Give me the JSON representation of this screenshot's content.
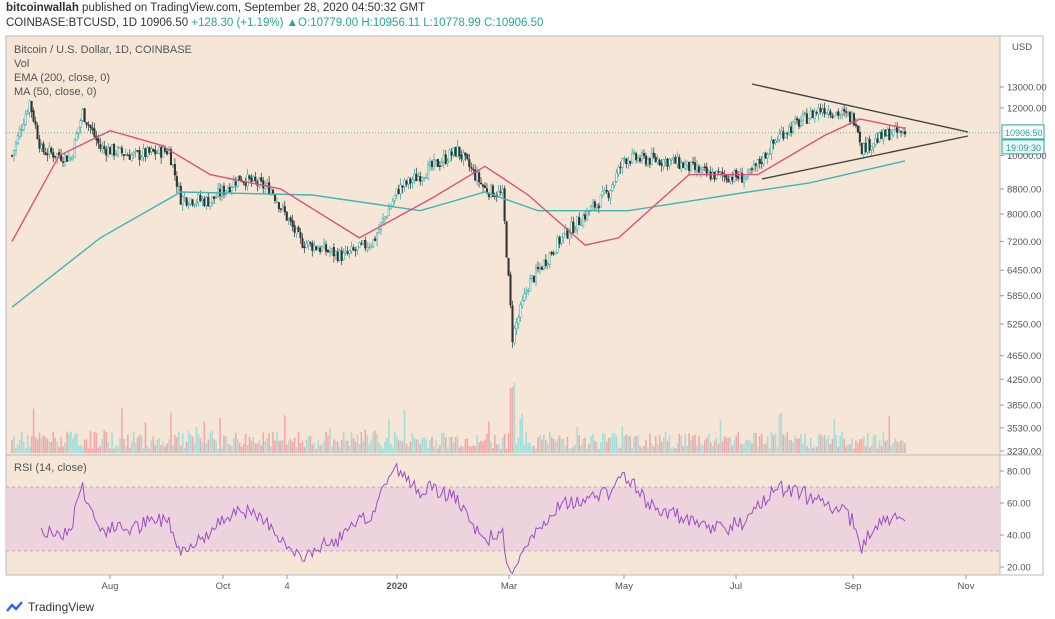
{
  "header": {
    "author": "bitcoinwallah",
    "published": "published on TradingView.com, September 28, 2020 04:50:32 GMT",
    "symbol": "COINBASE:BTCUSD, 1D",
    "last": "10906.50",
    "change": "+128.30 (+1.19%)",
    "o_label": "O:",
    "o": "10779.00",
    "h_label": "H:",
    "h": "10956.11",
    "l_label": "L:",
    "l": "10778.99",
    "c_label": "C:",
    "c": "10906.50"
  },
  "legend": {
    "title": "Bitcoin / U.S. Dollar, 1D, COINBASE",
    "vol": "Vol",
    "ema": "EMA (200, close, 0)",
    "ma": "MA (50, close, 0)",
    "rsi": "RSI (14, close)"
  },
  "footer": {
    "brand": "TradingView"
  },
  "colors": {
    "background": "#f5e6d8",
    "up": "#26a69a",
    "down": "#333333",
    "ema": "#3db8b0",
    "ma": "#e0507a",
    "rsi": "#9c4fc4",
    "rsi_band": "#ecd3dd",
    "trendline": "#444444"
  },
  "chart_data": [
    {
      "type": "line",
      "panel": "price",
      "scale": "log",
      "currency": "USD",
      "price_labels": [
        "USD",
        "13000.00",
        "12000.00",
        "10000.00",
        "8800.00",
        "8000.00",
        "7200.00",
        "6450.00",
        "5850.00",
        "5250.00",
        "4650.00",
        "4250.00",
        "3850.00",
        "3530.00",
        "3230.00"
      ],
      "x_ticks": [
        "Aug",
        "Oct",
        "4",
        "2020",
        "Mar",
        "May",
        "Jul",
        "Sep",
        "Nov"
      ],
      "current_price_label": "10906.50",
      "countdown_label": "19:09:30",
      "close_series_approx": [
        [
          "2019-07-01",
          10000
        ],
        [
          "2019-07-10",
          12300
        ],
        [
          "2019-07-16",
          10200
        ],
        [
          "2019-07-31",
          9900
        ],
        [
          "2019-08-06",
          11800
        ],
        [
          "2019-08-15",
          10300
        ],
        [
          "2019-09-01",
          10000
        ],
        [
          "2019-09-19",
          10200
        ],
        [
          "2019-09-25",
          8500
        ],
        [
          "2019-10-10",
          8400
        ],
        [
          "2019-10-25",
          9200
        ],
        [
          "2019-11-10",
          8800
        ],
        [
          "2019-11-25",
          7200
        ],
        [
          "2019-12-17",
          6800
        ],
        [
          "2020-01-01",
          7200
        ],
        [
          "2020-01-14",
          8800
        ],
        [
          "2020-02-13",
          10200
        ],
        [
          "2020-02-27",
          8800
        ],
        [
          "2020-03-07",
          8600
        ],
        [
          "2020-03-12",
          5000
        ],
        [
          "2020-03-20",
          6100
        ],
        [
          "2020-04-06",
          7300
        ],
        [
          "2020-04-30",
          8700
        ],
        [
          "2020-05-08",
          9900
        ],
        [
          "2020-06-01",
          9800
        ],
        [
          "2020-06-20",
          9300
        ],
        [
          "2020-07-10",
          9200
        ],
        [
          "2020-07-27",
          10900
        ],
        [
          "2020-08-17",
          12000
        ],
        [
          "2020-09-03",
          11500
        ],
        [
          "2020-09-06",
          10300
        ],
        [
          "2020-09-20",
          10900
        ],
        [
          "2020-09-28",
          10906.5
        ]
      ],
      "ema_200_approx": [
        [
          "2019-07-01",
          5600
        ],
        [
          "2019-08-15",
          7300
        ],
        [
          "2019-09-25",
          8700
        ],
        [
          "2019-12-01",
          8600
        ],
        [
          "2020-01-25",
          8100
        ],
        [
          "2020-02-27",
          8700
        ],
        [
          "2020-03-25",
          8100
        ],
        [
          "2020-05-10",
          8100
        ],
        [
          "2020-07-10",
          8700
        ],
        [
          "2020-08-10",
          9000
        ],
        [
          "2020-09-28",
          9800
        ]
      ],
      "ma_50_approx": [
        [
          "2019-07-01",
          7200
        ],
        [
          "2019-07-25",
          10000
        ],
        [
          "2019-08-20",
          11000
        ],
        [
          "2019-09-15",
          10400
        ],
        [
          "2019-10-10",
          9300
        ],
        [
          "2019-11-15",
          8800
        ],
        [
          "2019-12-25",
          7300
        ],
        [
          "2020-01-31",
          8500
        ],
        [
          "2020-02-27",
          9600
        ],
        [
          "2020-03-20",
          8600
        ],
        [
          "2020-04-18",
          7100
        ],
        [
          "2020-05-05",
          7300
        ],
        [
          "2020-06-10",
          9300
        ],
        [
          "2020-07-15",
          9300
        ],
        [
          "2020-08-18",
          10800
        ],
        [
          "2020-09-05",
          11500
        ],
        [
          "2020-09-28",
          11100
        ]
      ]
    },
    {
      "type": "bar",
      "panel": "volume",
      "series": [
        {
          "name": "Vol"
        }
      ]
    },
    {
      "type": "line",
      "panel": "rsi",
      "series": [
        {
          "name": "RSI (14, close)"
        }
      ],
      "ylim": [
        15,
        90
      ],
      "y_ticks": [
        80,
        60,
        40,
        20
      ],
      "y_tick_labels": [
        "80.00",
        "60.00",
        "40.00",
        "20.00"
      ],
      "band": [
        30,
        70
      ],
      "current_value": 52
    }
  ]
}
